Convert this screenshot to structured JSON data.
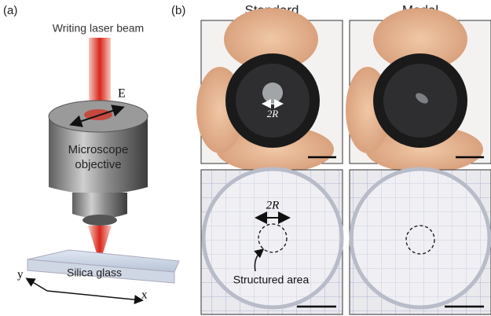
{
  "panel_a": {
    "label": "(a)",
    "beam_label": "Writing laser beam",
    "field_label": "E",
    "objective_label": [
      "Microscope",
      "objective"
    ],
    "sample_label": "Silica glass",
    "axis_y": "y",
    "axis_x": "x"
  },
  "panel_b": {
    "label": "(b)",
    "columns": [
      "Standard",
      "Modal"
    ],
    "radius_label_top": "2R",
    "radius_label_bottom": "2R",
    "area_label": "Structured area"
  }
}
